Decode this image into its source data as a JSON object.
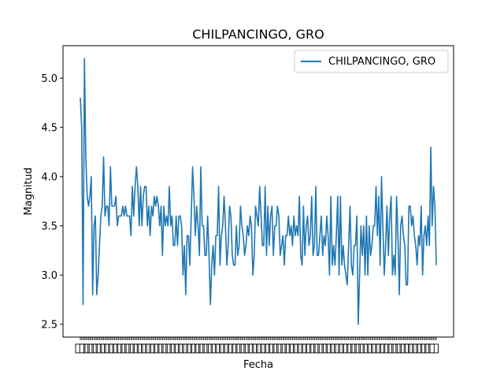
{
  "chart_data": {
    "type": "line",
    "title": "CHILPANCINGO, GRO",
    "xlabel": "Fecha",
    "ylabel": "Magnitud",
    "ylim": [
      2.37,
      5.33
    ],
    "yticks": [
      "2.5",
      "3.0",
      "3.5",
      "4.0",
      "4.5",
      "5.0"
    ],
    "legend": {
      "placement": "top-right"
    },
    "grid": false,
    "color": "#1f77b4",
    "series": [
      {
        "name": "CHILPANCINGO, GRO",
        "values": [
          4.8,
          4.5,
          2.7,
          5.2,
          4.2,
          3.8,
          3.7,
          3.8,
          4.0,
          2.8,
          3.5,
          3.6,
          2.8,
          3.0,
          3.3,
          3.6,
          3.7,
          4.2,
          3.6,
          3.7,
          3.7,
          3.5,
          4.1,
          3.7,
          3.7,
          3.7,
          3.8,
          3.5,
          3.6,
          3.6,
          3.6,
          3.7,
          3.6,
          3.7,
          3.6,
          3.6,
          3.6,
          3.4,
          3.9,
          3.6,
          3.9,
          4.1,
          3.9,
          3.5,
          3.9,
          3.5,
          3.8,
          3.9,
          3.9,
          3.5,
          3.7,
          3.4,
          3.7,
          3.6,
          3.8,
          3.7,
          3.8,
          3.7,
          3.5,
          3.7,
          3.2,
          3.7,
          3.5,
          3.6,
          3.5,
          3.9,
          3.5,
          3.6,
          3.3,
          3.3,
          3.6,
          3.3,
          3.6,
          3.6,
          3.5,
          3.0,
          3.3,
          2.8,
          3.4,
          3.4,
          3.1,
          3.6,
          4.1,
          3.8,
          3.4,
          3.7,
          3.5,
          3.2,
          4.1,
          3.5,
          3.5,
          3.2,
          3.2,
          3.6,
          3.2,
          2.7,
          3.1,
          3.3,
          3.0,
          3.4,
          3.4,
          3.9,
          3.1,
          3.4,
          3.5,
          3.8,
          3.5,
          3.1,
          3.3,
          3.7,
          3.6,
          3.2,
          3.1,
          3.1,
          3.5,
          3.2,
          3.3,
          3.7,
          3.5,
          3.4,
          3.2,
          3.3,
          3.5,
          3.4,
          3.6,
          3.5,
          3.0,
          3.2,
          3.7,
          3.6,
          3.5,
          3.9,
          3.6,
          3.3,
          3.3,
          3.9,
          3.2,
          3.7,
          3.3,
          3.6,
          3.7,
          3.2,
          3.5,
          3.5,
          3.7,
          3.6,
          3.2,
          3.3,
          3.4,
          3.1,
          3.4,
          3.4,
          3.6,
          3.4,
          3.5,
          3.3,
          3.6,
          3.4,
          3.5,
          3.4,
          3.8,
          3.2,
          3.1,
          3.7,
          3.2,
          3.5,
          3.6,
          3.3,
          3.4,
          3.8,
          3.2,
          3.3,
          3.9,
          3.2,
          3.2,
          3.4,
          3.6,
          3.2,
          3.4,
          3.3,
          3.6,
          3.4,
          3.0,
          3.8,
          3.1,
          3.3,
          3.1,
          3.4,
          3.8,
          3.0,
          3.8,
          3.1,
          3.3,
          3.1,
          3.0,
          2.9,
          3.3,
          3.7,
          3.1,
          3.0,
          3.3,
          3.3,
          3.6,
          2.5,
          3.0,
          3.5,
          3.2,
          3.5,
          3.0,
          3.6,
          3.0,
          3.5,
          3.2,
          3.3,
          3.5,
          3.5,
          3.9,
          3.4,
          3.8,
          3.1,
          4.0,
          3.5,
          3.0,
          3.3,
          3.7,
          3.2,
          3.6,
          3.8,
          3.0,
          3.2,
          3.0,
          3.8,
          3.4,
          2.8,
          3.5,
          3.6,
          3.4,
          3.3,
          2.9,
          2.9,
          3.7,
          3.7,
          3.5,
          3.6,
          3.4,
          3.3,
          3.1,
          3.4,
          3.3,
          3.7,
          3.0,
          3.4,
          3.5,
          3.3,
          3.6,
          3.3,
          4.3,
          3.5,
          3.9,
          3.7,
          3.1
        ]
      }
    ]
  }
}
